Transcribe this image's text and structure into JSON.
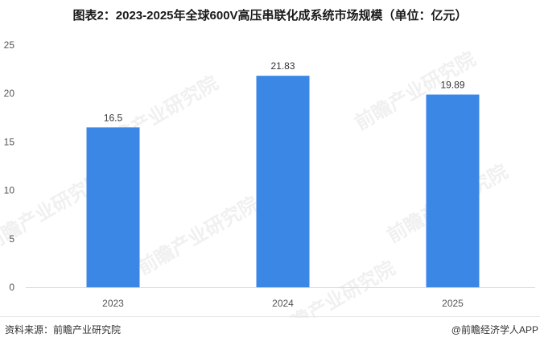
{
  "title": "图表2：2023-2025年全球600V高压串联化成系统市场规模（单位：亿元）",
  "source": "资料来源：前瞻产业研究院",
  "brand": "@前瞻经济学人APP",
  "watermark": "前瞻产业研究院",
  "colors": {
    "bar": "#3a87e6",
    "axis": "#d9d9d9"
  },
  "chart_data": {
    "type": "bar",
    "title": "图表2：2023-2025年全球600V高压串联化成系统市场规模（单位：亿元）",
    "xlabel": "",
    "ylabel": "",
    "categories": [
      "2023",
      "2024",
      "2025"
    ],
    "values": [
      16.5,
      21.83,
      19.89
    ],
    "value_labels": [
      "16.5",
      "21.83",
      "19.89"
    ],
    "ylim": [
      0,
      25
    ],
    "yticks": [
      "0",
      "5",
      "10",
      "15",
      "20",
      "25"
    ],
    "grid": false,
    "legend": "none"
  }
}
